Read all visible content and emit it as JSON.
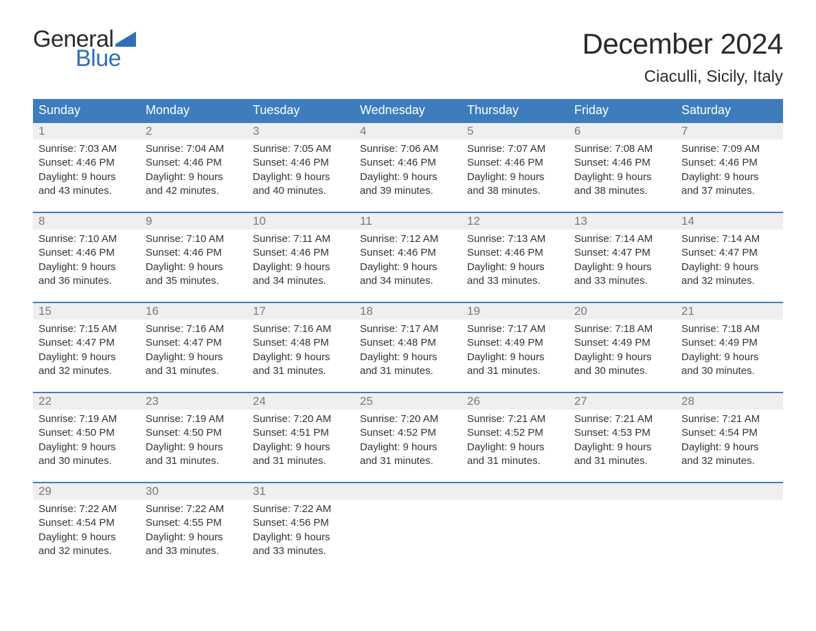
{
  "brand": {
    "word1": "General",
    "word2": "Blue",
    "flag_color": "#2e6fb5"
  },
  "title": "December 2024",
  "location": "Ciaculli, Sicily, Italy",
  "colors": {
    "header_bg": "#3d7dbd",
    "header_text": "#ffffff",
    "week_border": "#3d7dbd",
    "daynum_bg": "#efefef",
    "daynum_text": "#7a7a7a",
    "body_text": "#333333",
    "background": "#ffffff"
  },
  "typography": {
    "title_fontsize": 42,
    "location_fontsize": 24,
    "weekday_fontsize": 18,
    "daynum_fontsize": 17,
    "body_fontsize": 15
  },
  "weekdays": [
    "Sunday",
    "Monday",
    "Tuesday",
    "Wednesday",
    "Thursday",
    "Friday",
    "Saturday"
  ],
  "weeks": [
    [
      {
        "n": "1",
        "sunrise": "Sunrise: 7:03 AM",
        "sunset": "Sunset: 4:46 PM",
        "d1": "Daylight: 9 hours",
        "d2": "and 43 minutes."
      },
      {
        "n": "2",
        "sunrise": "Sunrise: 7:04 AM",
        "sunset": "Sunset: 4:46 PM",
        "d1": "Daylight: 9 hours",
        "d2": "and 42 minutes."
      },
      {
        "n": "3",
        "sunrise": "Sunrise: 7:05 AM",
        "sunset": "Sunset: 4:46 PM",
        "d1": "Daylight: 9 hours",
        "d2": "and 40 minutes."
      },
      {
        "n": "4",
        "sunrise": "Sunrise: 7:06 AM",
        "sunset": "Sunset: 4:46 PM",
        "d1": "Daylight: 9 hours",
        "d2": "and 39 minutes."
      },
      {
        "n": "5",
        "sunrise": "Sunrise: 7:07 AM",
        "sunset": "Sunset: 4:46 PM",
        "d1": "Daylight: 9 hours",
        "d2": "and 38 minutes."
      },
      {
        "n": "6",
        "sunrise": "Sunrise: 7:08 AM",
        "sunset": "Sunset: 4:46 PM",
        "d1": "Daylight: 9 hours",
        "d2": "and 38 minutes."
      },
      {
        "n": "7",
        "sunrise": "Sunrise: 7:09 AM",
        "sunset": "Sunset: 4:46 PM",
        "d1": "Daylight: 9 hours",
        "d2": "and 37 minutes."
      }
    ],
    [
      {
        "n": "8",
        "sunrise": "Sunrise: 7:10 AM",
        "sunset": "Sunset: 4:46 PM",
        "d1": "Daylight: 9 hours",
        "d2": "and 36 minutes."
      },
      {
        "n": "9",
        "sunrise": "Sunrise: 7:10 AM",
        "sunset": "Sunset: 4:46 PM",
        "d1": "Daylight: 9 hours",
        "d2": "and 35 minutes."
      },
      {
        "n": "10",
        "sunrise": "Sunrise: 7:11 AM",
        "sunset": "Sunset: 4:46 PM",
        "d1": "Daylight: 9 hours",
        "d2": "and 34 minutes."
      },
      {
        "n": "11",
        "sunrise": "Sunrise: 7:12 AM",
        "sunset": "Sunset: 4:46 PM",
        "d1": "Daylight: 9 hours",
        "d2": "and 34 minutes."
      },
      {
        "n": "12",
        "sunrise": "Sunrise: 7:13 AM",
        "sunset": "Sunset: 4:46 PM",
        "d1": "Daylight: 9 hours",
        "d2": "and 33 minutes."
      },
      {
        "n": "13",
        "sunrise": "Sunrise: 7:14 AM",
        "sunset": "Sunset: 4:47 PM",
        "d1": "Daylight: 9 hours",
        "d2": "and 33 minutes."
      },
      {
        "n": "14",
        "sunrise": "Sunrise: 7:14 AM",
        "sunset": "Sunset: 4:47 PM",
        "d1": "Daylight: 9 hours",
        "d2": "and 32 minutes."
      }
    ],
    [
      {
        "n": "15",
        "sunrise": "Sunrise: 7:15 AM",
        "sunset": "Sunset: 4:47 PM",
        "d1": "Daylight: 9 hours",
        "d2": "and 32 minutes."
      },
      {
        "n": "16",
        "sunrise": "Sunrise: 7:16 AM",
        "sunset": "Sunset: 4:47 PM",
        "d1": "Daylight: 9 hours",
        "d2": "and 31 minutes."
      },
      {
        "n": "17",
        "sunrise": "Sunrise: 7:16 AM",
        "sunset": "Sunset: 4:48 PM",
        "d1": "Daylight: 9 hours",
        "d2": "and 31 minutes."
      },
      {
        "n": "18",
        "sunrise": "Sunrise: 7:17 AM",
        "sunset": "Sunset: 4:48 PM",
        "d1": "Daylight: 9 hours",
        "d2": "and 31 minutes."
      },
      {
        "n": "19",
        "sunrise": "Sunrise: 7:17 AM",
        "sunset": "Sunset: 4:49 PM",
        "d1": "Daylight: 9 hours",
        "d2": "and 31 minutes."
      },
      {
        "n": "20",
        "sunrise": "Sunrise: 7:18 AM",
        "sunset": "Sunset: 4:49 PM",
        "d1": "Daylight: 9 hours",
        "d2": "and 30 minutes."
      },
      {
        "n": "21",
        "sunrise": "Sunrise: 7:18 AM",
        "sunset": "Sunset: 4:49 PM",
        "d1": "Daylight: 9 hours",
        "d2": "and 30 minutes."
      }
    ],
    [
      {
        "n": "22",
        "sunrise": "Sunrise: 7:19 AM",
        "sunset": "Sunset: 4:50 PM",
        "d1": "Daylight: 9 hours",
        "d2": "and 30 minutes."
      },
      {
        "n": "23",
        "sunrise": "Sunrise: 7:19 AM",
        "sunset": "Sunset: 4:50 PM",
        "d1": "Daylight: 9 hours",
        "d2": "and 31 minutes."
      },
      {
        "n": "24",
        "sunrise": "Sunrise: 7:20 AM",
        "sunset": "Sunset: 4:51 PM",
        "d1": "Daylight: 9 hours",
        "d2": "and 31 minutes."
      },
      {
        "n": "25",
        "sunrise": "Sunrise: 7:20 AM",
        "sunset": "Sunset: 4:52 PM",
        "d1": "Daylight: 9 hours",
        "d2": "and 31 minutes."
      },
      {
        "n": "26",
        "sunrise": "Sunrise: 7:21 AM",
        "sunset": "Sunset: 4:52 PM",
        "d1": "Daylight: 9 hours",
        "d2": "and 31 minutes."
      },
      {
        "n": "27",
        "sunrise": "Sunrise: 7:21 AM",
        "sunset": "Sunset: 4:53 PM",
        "d1": "Daylight: 9 hours",
        "d2": "and 31 minutes."
      },
      {
        "n": "28",
        "sunrise": "Sunrise: 7:21 AM",
        "sunset": "Sunset: 4:54 PM",
        "d1": "Daylight: 9 hours",
        "d2": "and 32 minutes."
      }
    ],
    [
      {
        "n": "29",
        "sunrise": "Sunrise: 7:22 AM",
        "sunset": "Sunset: 4:54 PM",
        "d1": "Daylight: 9 hours",
        "d2": "and 32 minutes."
      },
      {
        "n": "30",
        "sunrise": "Sunrise: 7:22 AM",
        "sunset": "Sunset: 4:55 PM",
        "d1": "Daylight: 9 hours",
        "d2": "and 33 minutes."
      },
      {
        "n": "31",
        "sunrise": "Sunrise: 7:22 AM",
        "sunset": "Sunset: 4:56 PM",
        "d1": "Daylight: 9 hours",
        "d2": "and 33 minutes."
      },
      {
        "empty": true
      },
      {
        "empty": true
      },
      {
        "empty": true
      },
      {
        "empty": true
      }
    ]
  ]
}
